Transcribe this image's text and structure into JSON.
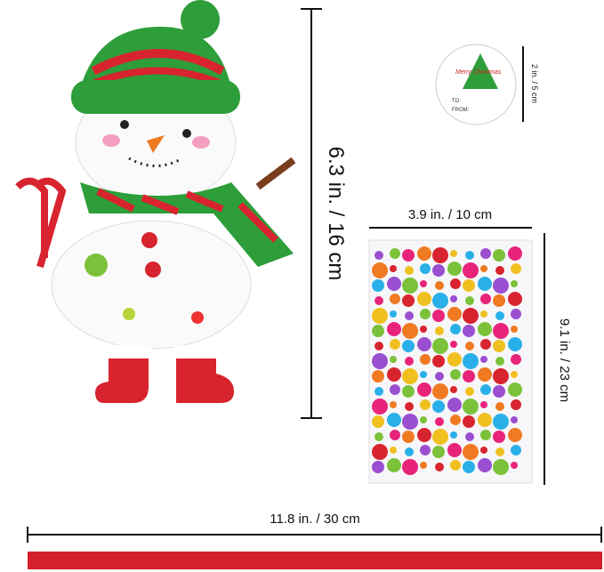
{
  "dimensions": {
    "snowman_height": "6.3 in. / 16 cm",
    "tag_diameter": "2 in. / 5 cm",
    "sheet_width": "3.9 in. / 10 cm",
    "sheet_height": "9.1 in. / 23 cm",
    "ribbon_length": "11.8 in. / 30 cm"
  },
  "tag": {
    "greeting": "Merry Christmas",
    "to": "TO:",
    "from": "FROM:"
  }
}
